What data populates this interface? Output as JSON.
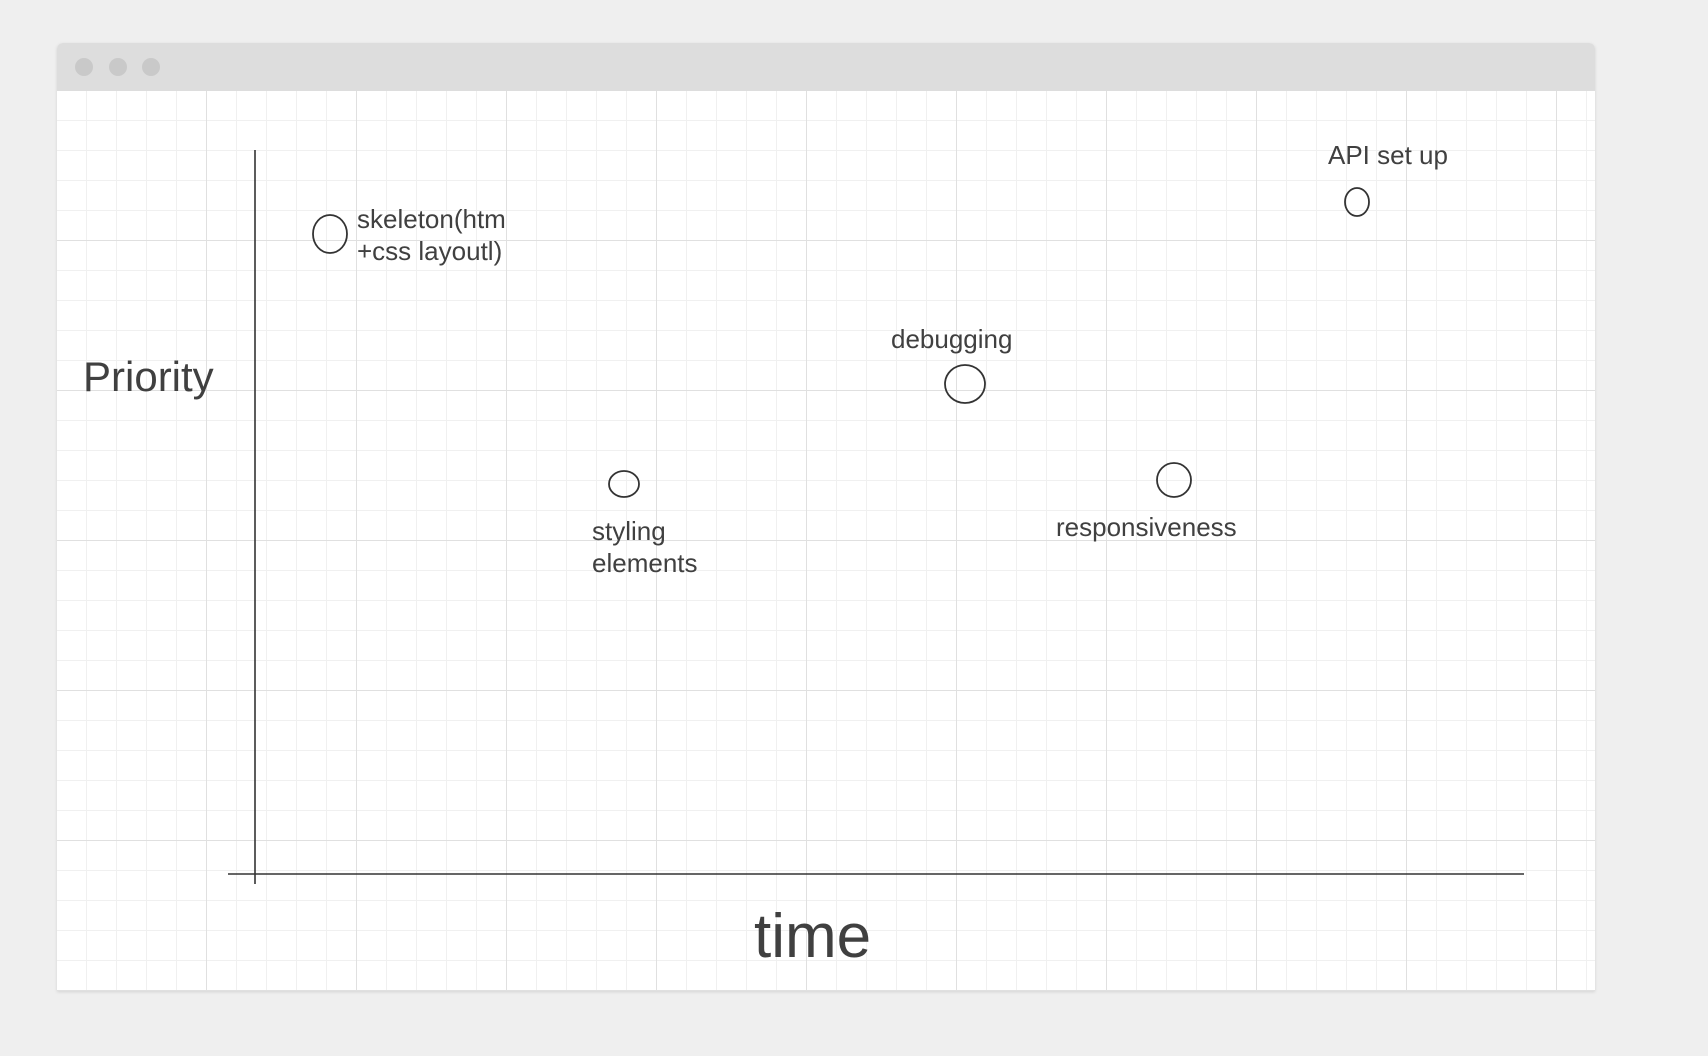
{
  "window": {
    "traffic_lights": [
      "close",
      "minimize",
      "maximize"
    ]
  },
  "diagram": {
    "y_axis_label": "Priority",
    "x_axis_label": "time",
    "items": [
      {
        "id": "skeleton",
        "lines": [
          "skeleton(htm",
          "+css layoutl)"
        ]
      },
      {
        "id": "api",
        "lines": [
          "API set up"
        ]
      },
      {
        "id": "debugging",
        "lines": [
          "debugging"
        ]
      },
      {
        "id": "styling",
        "lines": [
          "styling",
          "elements"
        ]
      },
      {
        "id": "responsiveness",
        "lines": [
          "responsiveness"
        ]
      }
    ]
  },
  "colors": {
    "stroke": "#333333",
    "text": "#404040",
    "grid_major": "#e0e0e0",
    "grid_minor": "#f0f0f0",
    "titlebar": "#dddddd"
  }
}
